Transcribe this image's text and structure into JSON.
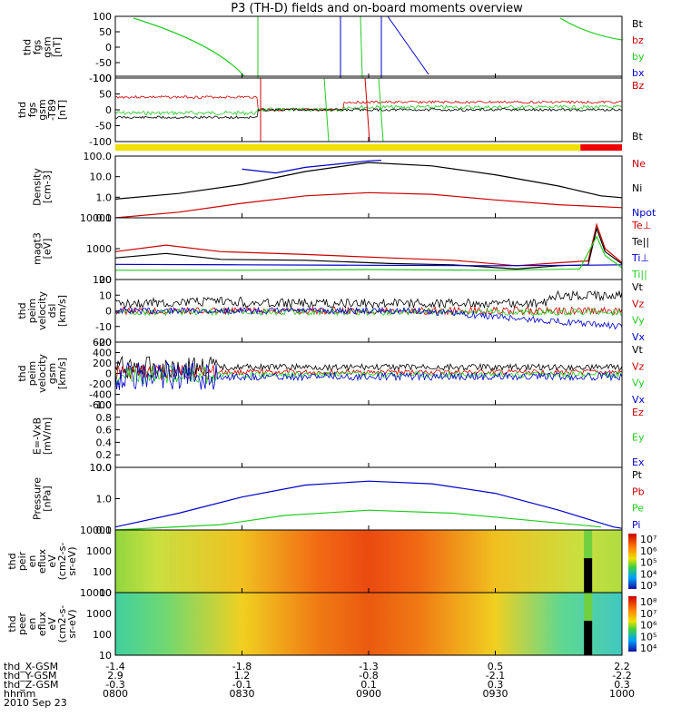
{
  "chart_data": {
    "type": "line",
    "title": "P3 (TH-D) fields and on-board moments overview",
    "colors": {
      "black": "#000000",
      "red": "#cc0000",
      "green": "#22cc22",
      "blue": "#0000cc"
    },
    "time_ticks": [
      "0800",
      "0830",
      "0900",
      "0930",
      "1000"
    ],
    "panels": [
      {
        "id": "fgs-gsm",
        "ylabel": [
          "thd",
          "fgs",
          "gsm",
          "[nT]"
        ],
        "yticks": [
          "100",
          "50",
          "0",
          "-50",
          "-100"
        ],
        "legend": [
          {
            "text": "Bt",
            "color": "black"
          },
          {
            "text": "bz",
            "color": "red"
          },
          {
            "text": "by",
            "color": "green"
          },
          {
            "text": "bx",
            "color": "blue"
          }
        ],
        "ylim": [
          -100,
          100
        ]
      },
      {
        "id": "fgs-gsm-t89",
        "ylabel": [
          "thd",
          "fgs",
          "gsm",
          "-T89",
          "[nT]"
        ],
        "yticks": [
          "100",
          "50",
          "0",
          "-50",
          "-100"
        ],
        "legend": [
          {
            "text": "Bz",
            "color": "red"
          },
          {
            "text": "Bt",
            "color": "black"
          }
        ],
        "ylim": [
          -120,
          120
        ]
      },
      {
        "id": "density",
        "ylabel": [
          "Density",
          "[cm-3]"
        ],
        "yticks": [
          "100.0",
          "10.0",
          "1.0",
          "0.1"
        ],
        "legend": [
          {
            "text": "Ne",
            "color": "red"
          },
          {
            "text": "Ni",
            "color": "black"
          },
          {
            "text": "Npot",
            "color": "blue"
          }
        ],
        "scale": "log",
        "ylim": [
          0.1,
          200
        ]
      },
      {
        "id": "temperature",
        "ylabel": [
          "magt3",
          "[eV]"
        ],
        "yticks": [
          "10000",
          "1000",
          "100"
        ],
        "legend": [
          {
            "text": "Te⊥",
            "color": "red"
          },
          {
            "text": "Te||",
            "color": "black"
          },
          {
            "text": "Ti⊥",
            "color": "blue"
          },
          {
            "text": "Ti||",
            "color": "green"
          }
        ],
        "scale": "log",
        "ylim": [
          100,
          10000
        ]
      },
      {
        "id": "peim-velocity-dsl",
        "ylabel": [
          "thd",
          "peim",
          "velocity",
          "dsl",
          "[km/s]"
        ],
        "yticks": [
          "20",
          "10",
          "0",
          "-10",
          "-20"
        ],
        "legend": [
          {
            "text": "Vt",
            "color": "black"
          },
          {
            "text": "Vz",
            "color": "red"
          },
          {
            "text": "Vy",
            "color": "green"
          },
          {
            "text": "Vx",
            "color": "blue"
          }
        ],
        "ylim": [
          -20,
          20
        ]
      },
      {
        "id": "peim-velocity-gsm",
        "ylabel": [
          "thd",
          "peim",
          "velocity",
          "gsm",
          "[km/s]"
        ],
        "yticks": [
          "600",
          "400",
          "200",
          "0",
          "-200",
          "-400",
          "-600"
        ],
        "legend": [
          {
            "text": "Vt",
            "color": "black"
          },
          {
            "text": "Vz",
            "color": "red"
          },
          {
            "text": "Vy",
            "color": "green"
          },
          {
            "text": "Vx",
            "color": "blue"
          }
        ],
        "ylim": [
          -600,
          600
        ]
      },
      {
        "id": "e-vxb",
        "ylabel": [
          "E=-VxB",
          "[mV/m]"
        ],
        "yticks": [
          "1.0",
          "0.8",
          "0.6",
          "0.4",
          "0.2",
          "0.0"
        ],
        "legend": [
          {
            "text": "Ez",
            "color": "red"
          },
          {
            "text": "Ey",
            "color": "green"
          },
          {
            "text": "Ex",
            "color": "blue"
          }
        ],
        "ylim": [
          0,
          1
        ]
      },
      {
        "id": "pressure",
        "ylabel": [
          "Pressure",
          "[nPa]"
        ],
        "yticks": [
          "10.0",
          "1.0",
          "0.1"
        ],
        "legend": [
          {
            "text": "Pt",
            "color": "black"
          },
          {
            "text": "Pb",
            "color": "red"
          },
          {
            "text": "Pe",
            "color": "green"
          },
          {
            "text": "Pi",
            "color": "blue"
          }
        ],
        "scale": "log",
        "ylim": [
          0.03,
          12
        ]
      },
      {
        "id": "peir-en-eflux",
        "type": "heatmap",
        "ylabel": [
          "thd",
          "peir",
          "en",
          "eflux",
          "eV",
          "(cm2-s-",
          "sr-eV)"
        ],
        "yticks": [
          "10000",
          "1000",
          "100",
          "10"
        ],
        "colorbar_ticks": [
          "10⁷",
          "10⁶",
          "10⁵",
          "10⁴",
          "10³"
        ]
      },
      {
        "id": "peer-en-eflux",
        "type": "heatmap",
        "ylabel": [
          "thd",
          "peer",
          "en",
          "eflux",
          "eV",
          "(cm2-s-",
          "sr-eV)"
        ],
        "yticks": [
          "10000",
          "1000",
          "100",
          "10"
        ],
        "colorbar_ticks": [
          "10⁸",
          "10⁷",
          "10⁶",
          "10⁵",
          "10⁴"
        ]
      }
    ],
    "ephemeris": {
      "labels": [
        "thd_X-GSM",
        "thd_Y-GSM",
        "thd_Z-GSM",
        "hhmm",
        "2010 Sep 23"
      ],
      "rows": [
        [
          "-1.4",
          "-1.8",
          "-1.3",
          "0.5",
          "2.2"
        ],
        [
          "2.9",
          "1.2",
          "-0.8",
          "-2.1",
          "-2.2"
        ],
        [
          "-0.3",
          "-0.1",
          "0.1",
          "0.3",
          "0.3"
        ],
        [
          "0800",
          "0830",
          "0900",
          "0930",
          "1000"
        ]
      ]
    },
    "series": {
      "density_ni": [
        [
          0,
          1.0
        ],
        [
          15,
          2.0
        ],
        [
          30,
          6
        ],
        [
          45,
          30
        ],
        [
          60,
          90
        ],
        [
          75,
          60
        ],
        [
          90,
          20
        ],
        [
          105,
          5
        ],
        [
          115,
          1.5
        ],
        [
          120,
          1.2
        ]
      ],
      "density_ne": [
        [
          0,
          0.1
        ],
        [
          15,
          0.2
        ],
        [
          30,
          0.6
        ],
        [
          45,
          1.5
        ],
        [
          60,
          2.2
        ],
        [
          75,
          1.8
        ],
        [
          90,
          0.9
        ],
        [
          105,
          0.5
        ],
        [
          120,
          0.35
        ]
      ],
      "density_npot": [
        [
          30,
          40
        ],
        [
          38,
          25
        ],
        [
          45,
          50
        ],
        [
          60,
          110
        ],
        [
          63,
          120
        ]
      ],
      "temp_te_perp": [
        [
          0,
          800
        ],
        [
          12,
          1300
        ],
        [
          25,
          800
        ],
        [
          45,
          650
        ],
        [
          65,
          500
        ],
        [
          80,
          420
        ],
        [
          95,
          280
        ],
        [
          105,
          350
        ],
        [
          112,
          400
        ],
        [
          114,
          6000
        ],
        [
          116,
          1000
        ],
        [
          120,
          350
        ]
      ],
      "temp_te_par": [
        [
          0,
          500
        ],
        [
          12,
          700
        ],
        [
          25,
          450
        ],
        [
          45,
          420
        ],
        [
          65,
          330
        ],
        [
          80,
          300
        ],
        [
          95,
          220
        ],
        [
          105,
          280
        ],
        [
          112,
          300
        ],
        [
          114,
          4500
        ],
        [
          116,
          800
        ],
        [
          120,
          320
        ]
      ],
      "temp_ti_perp": [
        [
          0,
          310
        ],
        [
          30,
          300
        ],
        [
          60,
          290
        ],
        [
          90,
          280
        ],
        [
          110,
          290
        ],
        [
          120,
          300
        ]
      ],
      "temp_ti_par": [
        [
          0,
          200
        ],
        [
          30,
          200
        ],
        [
          60,
          210
        ],
        [
          90,
          200
        ],
        [
          110,
          220
        ],
        [
          114,
          2500
        ],
        [
          116,
          600
        ],
        [
          120,
          240
        ]
      ],
      "pressure_pi": [
        [
          0,
          0.04
        ],
        [
          15,
          0.15
        ],
        [
          30,
          0.7
        ],
        [
          45,
          2.2
        ],
        [
          60,
          3.2
        ],
        [
          75,
          2.5
        ],
        [
          90,
          1.0
        ],
        [
          105,
          0.2
        ],
        [
          118,
          0.04
        ],
        [
          120,
          0.035
        ]
      ],
      "pressure_pe": [
        [
          0,
          0.03
        ],
        [
          25,
          0.05
        ],
        [
          40,
          0.12
        ],
        [
          60,
          0.2
        ],
        [
          80,
          0.15
        ],
        [
          100,
          0.07
        ],
        [
          115,
          0.04
        ]
      ]
    }
  }
}
